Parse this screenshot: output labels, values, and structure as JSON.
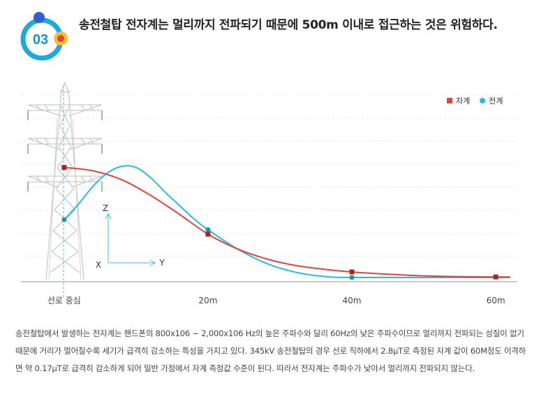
{
  "badge": {
    "number": "03"
  },
  "headline": "송전철탑 전자계는 멀리까지 전파되기 때문에 500m 이내로 접근하는 것은 위험하다.",
  "chart_data": {
    "type": "line",
    "title": "",
    "categories": [
      "선로 중심",
      "20m",
      "40m",
      "60m"
    ],
    "x": [
      0,
      20,
      40,
      60
    ],
    "xlim": [
      -6,
      63
    ],
    "ylim": [
      0,
      1
    ],
    "series": [
      {
        "name": "자계",
        "color": "#e8403a",
        "points": [
          [
            0,
            0.99
          ],
          [
            20,
            0.39
          ],
          [
            40,
            0.05
          ],
          [
            60,
            0.005
          ]
        ],
        "curve": [
          [
            0,
            0.99
          ],
          [
            4,
            0.96
          ],
          [
            8,
            0.88
          ],
          [
            12,
            0.74
          ],
          [
            16,
            0.57
          ],
          [
            20,
            0.39
          ],
          [
            24,
            0.26
          ],
          [
            28,
            0.17
          ],
          [
            32,
            0.11
          ],
          [
            36,
            0.075
          ],
          [
            40,
            0.05
          ],
          [
            45,
            0.03
          ],
          [
            50,
            0.015
          ],
          [
            55,
            0.008
          ],
          [
            60,
            0.005
          ],
          [
            62,
            0.005
          ]
        ]
      },
      {
        "name": "전계",
        "color": "#1fbfdf",
        "points": [
          [
            0,
            0.52
          ],
          [
            20,
            0.43
          ],
          [
            40,
            0.0
          ]
        ],
        "curve": [
          [
            0,
            0.52
          ],
          [
            2,
            0.66
          ],
          [
            4,
            0.82
          ],
          [
            6,
            0.94
          ],
          [
            8,
            1.0
          ],
          [
            10,
            0.99
          ],
          [
            12,
            0.9
          ],
          [
            14,
            0.77
          ],
          [
            16,
            0.65
          ],
          [
            18,
            0.53
          ],
          [
            20,
            0.43
          ],
          [
            24,
            0.26
          ],
          [
            28,
            0.13
          ],
          [
            32,
            0.05
          ],
          [
            36,
            0.01
          ],
          [
            40,
            0.0
          ],
          [
            50,
            0.0
          ],
          [
            62,
            0.0
          ]
        ]
      }
    ],
    "axis_labels": {
      "z": "Z",
      "x": "X",
      "y": "Y"
    }
  },
  "legend": {
    "magnetic": "자계",
    "electric": "전계"
  },
  "paragraph": "송전철탑에서 발생하는 전자계는 핸드폰의 800x106 ~ 2,000x106 Hz의 높은 주파수와 달리 60Hz의 낮은 주파수이므로 멀리까지 전파되는 성질이 없기 때문에 거리가 멀어질수록 세기가 급격히 감소하는 특성을 가지고 있다. 345kV 송전철탑의 경우 선로 직하에서 2.8μT로 측정된 자계 값이 60M정도 이격하면 약 0.17μT로 급격히 감소하게 되어 일반 가정에서 자계 측정값 수준이 된다. 따라서 전자계는 주파수가 낮아서 멀리까지 전파되지 않는다."
}
